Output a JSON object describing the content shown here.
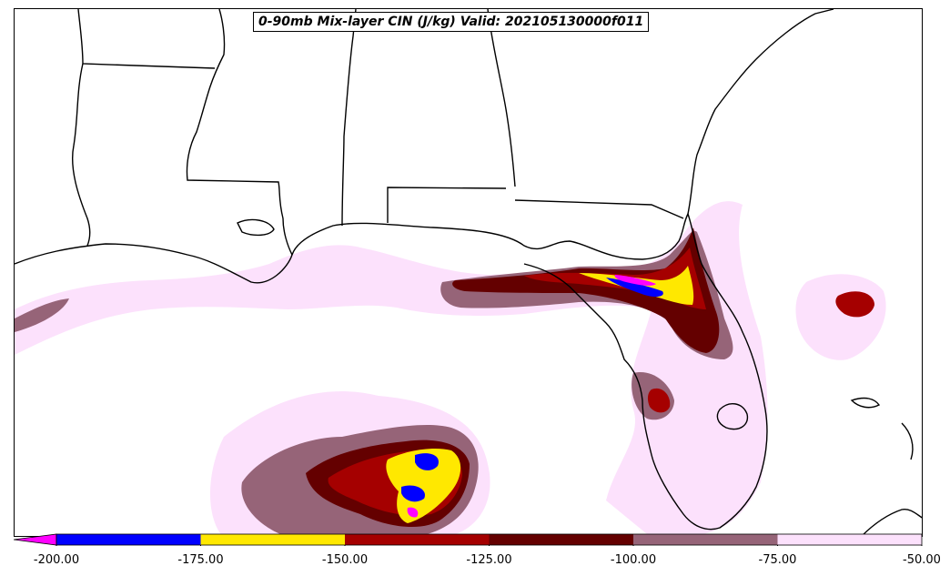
{
  "title": "0-90mb Mix-layer CIN (J/kg) Valid: 202105130000f011",
  "colorbar": {
    "extend_color": "#ff00ff",
    "bins": [
      {
        "from": -200,
        "to": -175,
        "color": "#0000ff"
      },
      {
        "from": -175,
        "to": -150,
        "color": "#ffe800"
      },
      {
        "from": -150,
        "to": -125,
        "color": "#a50000"
      },
      {
        "from": -125,
        "to": -100,
        "color": "#640000"
      },
      {
        "from": -100,
        "to": -75,
        "color": "#966478"
      },
      {
        "from": -75,
        "to": -50,
        "color": "#fce1fc"
      }
    ],
    "tick_labels": [
      "-200.00",
      "-175.00",
      "-150.00",
      "-125.00",
      "-100.00",
      "-75.00",
      "-50.00"
    ]
  }
}
